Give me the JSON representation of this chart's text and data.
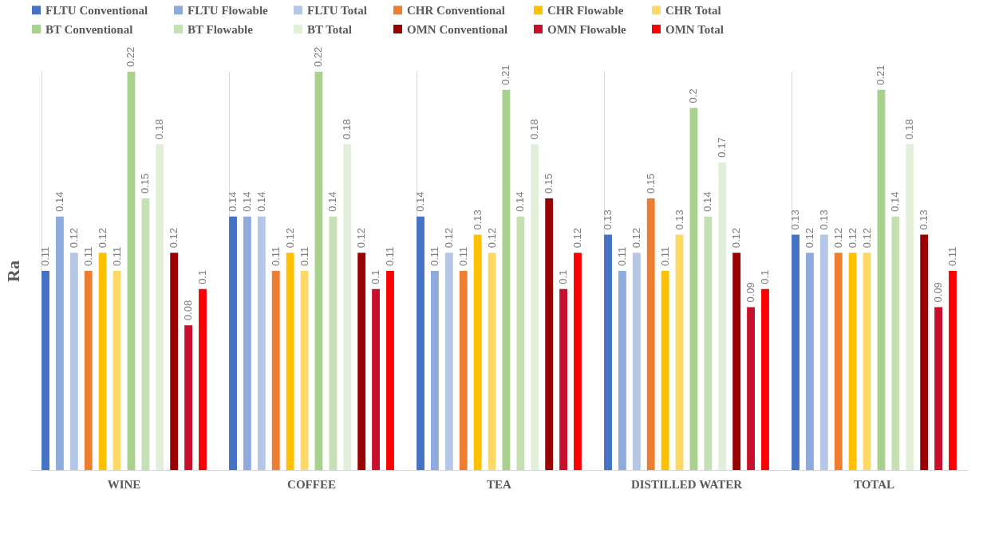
{
  "chart_data": {
    "type": "bar",
    "ylabel": "Ra",
    "categories": [
      "WINE",
      "COFFEE",
      "TEA",
      "DISTILLED WATER",
      "TOTAL"
    ],
    "series": [
      {
        "name": "FLTU Conventional",
        "color": "#4472c4",
        "values": [
          0.11,
          0.14,
          0.14,
          0.13,
          0.13
        ]
      },
      {
        "name": "FLTU Flowable",
        "color": "#8faadc",
        "values": [
          0.14,
          0.14,
          0.11,
          0.11,
          0.12
        ]
      },
      {
        "name": "FLTU Total",
        "color": "#b4c7e7",
        "values": [
          0.12,
          0.14,
          0.12,
          0.12,
          0.13
        ]
      },
      {
        "name": "CHR Conventional",
        "color": "#ed7d31",
        "values": [
          0.11,
          0.11,
          0.11,
          0.15,
          0.12
        ]
      },
      {
        "name": "CHR Flowable",
        "color": "#ffc000",
        "values": [
          0.12,
          0.12,
          0.13,
          0.11,
          0.12
        ]
      },
      {
        "name": "CHR Total",
        "color": "#ffd966",
        "values": [
          0.11,
          0.11,
          0.12,
          0.13,
          0.12
        ]
      },
      {
        "name": "BT Conventional",
        "color": "#a9d18e",
        "values": [
          0.22,
          0.22,
          0.21,
          0.2,
          0.21
        ]
      },
      {
        "name": "BT Flowable",
        "color": "#c5e0b4",
        "values": [
          0.15,
          0.14,
          0.14,
          0.14,
          0.14
        ]
      },
      {
        "name": "BT Total",
        "color": "#e2f0d9",
        "values": [
          0.18,
          0.18,
          0.18,
          0.17,
          0.18
        ]
      },
      {
        "name": "OMN Conventional",
        "color": "#990000",
        "values": [
          0.12,
          0.12,
          0.15,
          0.12,
          0.13
        ]
      },
      {
        "name": "OMN Flowable",
        "color": "#c8102e",
        "values": [
          0.08,
          0.1,
          0.1,
          0.09,
          0.09
        ]
      },
      {
        "name": "OMN Total",
        "color": "#ff0000",
        "values": [
          0.1,
          0.11,
          0.12,
          0.1,
          0.11
        ]
      }
    ],
    "data_labels": true,
    "legend": "top",
    "grid": "x",
    "tick_labels": "x"
  }
}
